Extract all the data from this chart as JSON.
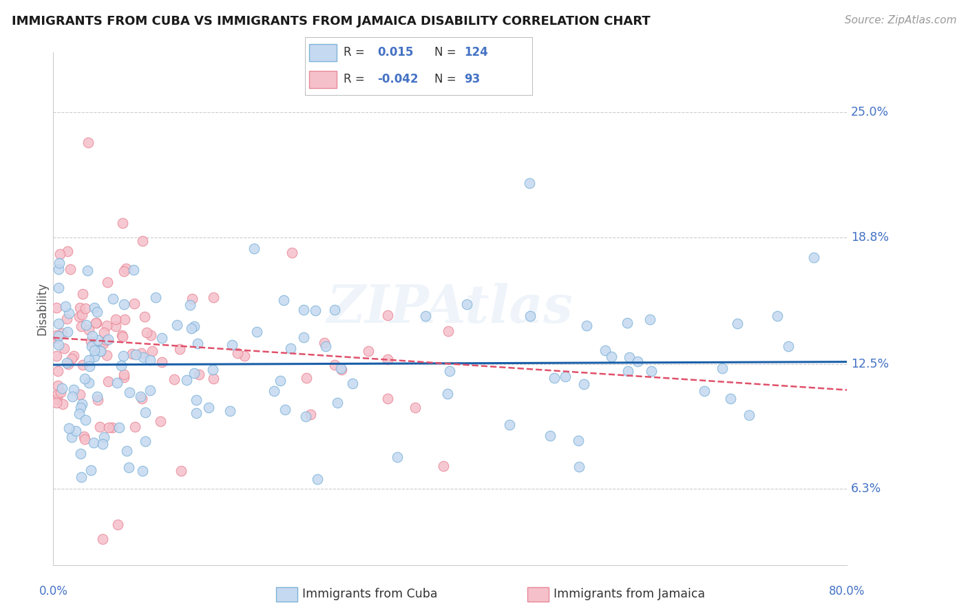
{
  "title": "IMMIGRANTS FROM CUBA VS IMMIGRANTS FROM JAMAICA DISABILITY CORRELATION CHART",
  "source": "Source: ZipAtlas.com",
  "ylabel": "Disability",
  "yticks": [
    6.3,
    12.5,
    18.8,
    25.0
  ],
  "xmin": 0.0,
  "xmax": 80.0,
  "ymin": 2.5,
  "ymax": 28.0,
  "legend_r_cuba": "0.015",
  "legend_n_cuba": "124",
  "legend_r_jamaica": "-0.042",
  "legend_n_jamaica": "93",
  "cuba_color": "#c5d9f0",
  "cuba_edge_color": "#7eb3d8",
  "jamaica_color": "#f5c0ca",
  "jamaica_edge_color": "#e88898",
  "trend_cuba_color": "#1a5fa8",
  "trend_jamaica_color": "#e0506a",
  "watermark": "ZIPAtlas",
  "background_color": "#ffffff",
  "grid_color": "#cccccc",
  "axis_label_color": "#4472c4",
  "title_color": "#1a1a1a",
  "cuba_trend_y_start": 12.45,
  "cuba_trend_y_end": 12.6,
  "jamaica_trend_y_start": 13.8,
  "jamaica_trend_y_end": 11.2
}
